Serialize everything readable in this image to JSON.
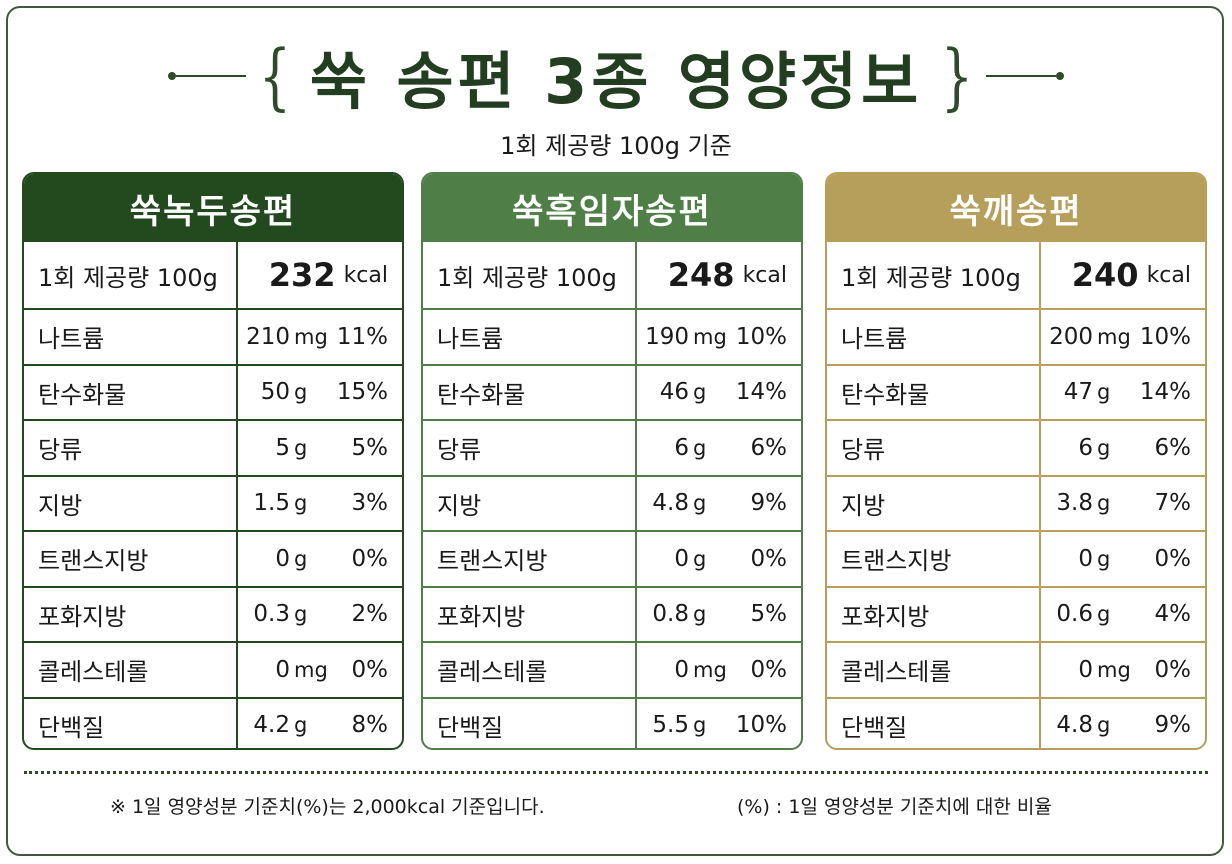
{
  "title": "쑥 송편 3종 영양정보",
  "subtitle": "1회 제공량 100g 기준",
  "colors": {
    "dark_green": "#23491f",
    "mid_green": "#4f7f47",
    "gold": "#b59f5a"
  },
  "products": [
    {
      "name": "쑥녹두송편",
      "serving_label": "1회 제공량 100g",
      "kcal": "232",
      "kcal_unit": "kcal",
      "nutrients": [
        {
          "name": "나트륨",
          "amount": "210",
          "unit": "mg",
          "pct": "11%"
        },
        {
          "name": "탄수화물",
          "amount": "50",
          "unit": "g",
          "pct": "15%"
        },
        {
          "name": "당류",
          "amount": "5",
          "unit": "g",
          "pct": "5%"
        },
        {
          "name": "지방",
          "amount": "1.5",
          "unit": "g",
          "pct": "3%"
        },
        {
          "name": "트랜스지방",
          "amount": "0",
          "unit": "g",
          "pct": "0%"
        },
        {
          "name": "포화지방",
          "amount": "0.3",
          "unit": "g",
          "pct": "2%"
        },
        {
          "name": "콜레스테롤",
          "amount": "0",
          "unit": "mg",
          "pct": "0%"
        },
        {
          "name": "단백질",
          "amount": "4.2",
          "unit": "g",
          "pct": "8%"
        }
      ]
    },
    {
      "name": "쑥흑임자송편",
      "serving_label": "1회 제공량 100g",
      "kcal": "248",
      "kcal_unit": "kcal",
      "nutrients": [
        {
          "name": "나트륨",
          "amount": "190",
          "unit": "mg",
          "pct": "10%"
        },
        {
          "name": "탄수화물",
          "amount": "46",
          "unit": "g",
          "pct": "14%"
        },
        {
          "name": "당류",
          "amount": "6",
          "unit": "g",
          "pct": "6%"
        },
        {
          "name": "지방",
          "amount": "4.8",
          "unit": "g",
          "pct": "9%"
        },
        {
          "name": "트랜스지방",
          "amount": "0",
          "unit": "g",
          "pct": "0%"
        },
        {
          "name": "포화지방",
          "amount": "0.8",
          "unit": "g",
          "pct": "5%"
        },
        {
          "name": "콜레스테롤",
          "amount": "0",
          "unit": "mg",
          "pct": "0%"
        },
        {
          "name": "단백질",
          "amount": "5.5",
          "unit": "g",
          "pct": "10%"
        }
      ]
    },
    {
      "name": "쑥깨송편",
      "serving_label": "1회 제공량 100g",
      "kcal": "240",
      "kcal_unit": "kcal",
      "nutrients": [
        {
          "name": "나트륨",
          "amount": "200",
          "unit": "mg",
          "pct": "10%"
        },
        {
          "name": "탄수화물",
          "amount": "47",
          "unit": "g",
          "pct": "14%"
        },
        {
          "name": "당류",
          "amount": "6",
          "unit": "g",
          "pct": "6%"
        },
        {
          "name": "지방",
          "amount": "3.8",
          "unit": "g",
          "pct": "7%"
        },
        {
          "name": "트랜스지방",
          "amount": "0",
          "unit": "g",
          "pct": "0%"
        },
        {
          "name": "포화지방",
          "amount": "0.6",
          "unit": "g",
          "pct": "4%"
        },
        {
          "name": "콜레스테롤",
          "amount": "0",
          "unit": "mg",
          "pct": "0%"
        },
        {
          "name": "단백질",
          "amount": "4.8",
          "unit": "g",
          "pct": "9%"
        }
      ]
    }
  ],
  "footer": {
    "left": "※ 1일 영양성분 기준치(%)는 2,000kcal 기준입니다.",
    "right": "(%) : 1일 영양성분 기준치에 대한 비율"
  }
}
